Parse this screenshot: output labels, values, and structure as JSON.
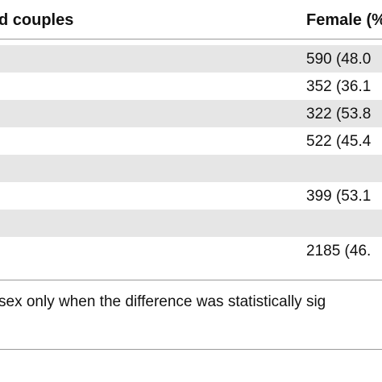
{
  "table": {
    "headers": {
      "left": "d couples",
      "right": "Female (%"
    },
    "rows": [
      {
        "value": "590 (48.0"
      },
      {
        "value": "352 (36.1"
      },
      {
        "value": "322 (53.8"
      },
      {
        "value": "522 (45.4"
      },
      {
        "value": ""
      },
      {
        "value": "399 (53.1"
      },
      {
        "value": ""
      },
      {
        "value": "2185 (46."
      }
    ]
  },
  "footnote": "sex only when the difference was statistically sig"
}
